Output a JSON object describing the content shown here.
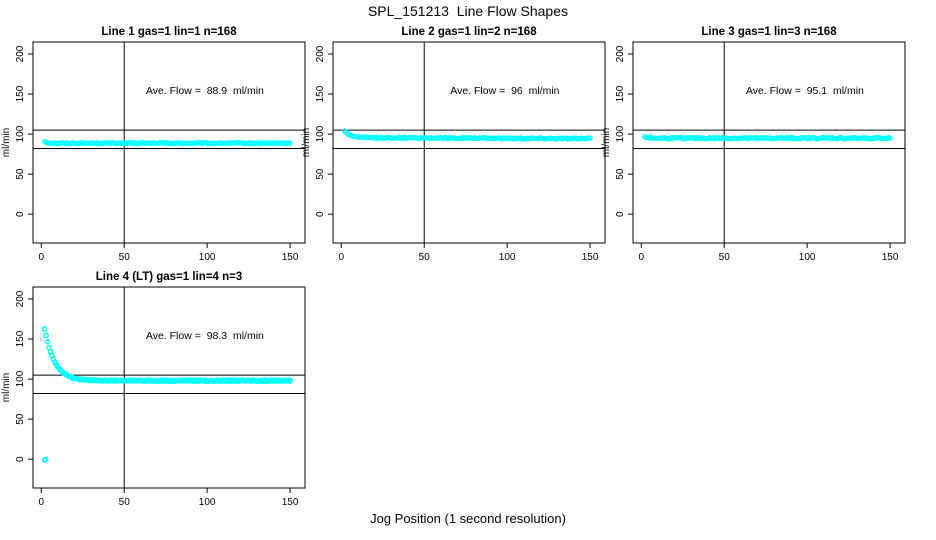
{
  "figure": {
    "title": "SPL_151213  Line Flow Shapes",
    "xlabel": "Jog Position (1 second resolution)",
    "background_color": "#ffffff",
    "marker_color": "#00FFFF",
    "line_color": "#000000"
  },
  "chart_data": {
    "type": "scatter",
    "title": "SPL_151213  Line Flow Shapes",
    "xlabel": "Jog Position (1 second resolution)",
    "layout": "2-row by 3-column grid, 4 panels used (3 top, 1 bottom-left)",
    "shared": {
      "ylabel": "ml/min",
      "xticks": [
        0,
        50,
        100,
        150
      ],
      "yticks": [
        0,
        50,
        100,
        150,
        200
      ],
      "xlim": [
        -5,
        159
      ],
      "ylim": [
        -36,
        215
      ],
      "vline_x": 50,
      "hlines": [
        105,
        82
      ],
      "grid": "off",
      "marker": "open-circle",
      "marker_color": "#00FFFF"
    },
    "panels": [
      {
        "title": "Line 1 gas=1 lin=1 n=168",
        "annotation": "Ave. Flow =  88.9  ml/min",
        "ave_flow": 88.9,
        "gas": 1,
        "lin": 1,
        "n": 168,
        "grid": {
          "row": 0,
          "col": 0
        },
        "profile": {
          "x_start": 2,
          "x_end": 150,
          "points": 168,
          "passes": 1,
          "y_start": 91,
          "y_settle": 88.7,
          "decay_tau": 1.5,
          "slope": 0,
          "jitter": 0.55,
          "outliers": []
        }
      },
      {
        "title": "Line 2 gas=1 lin=2 n=168",
        "annotation": "Ave. Flow =  96  ml/min",
        "ave_flow": 96,
        "gas": 1,
        "lin": 2,
        "n": 168,
        "grid": {
          "row": 0,
          "col": 1
        },
        "profile": {
          "x_start": 2,
          "x_end": 150,
          "points": 168,
          "passes": 1,
          "y_start": 104,
          "y_settle": 95.6,
          "decay_tau": 3.5,
          "slope": -0.008,
          "jitter": 0.75,
          "outliers": []
        }
      },
      {
        "title": "Line 3 gas=1 lin=3 n=168",
        "annotation": "Ave. Flow =  95.1  ml/min",
        "ave_flow": 95.1,
        "gas": 1,
        "lin": 3,
        "n": 168,
        "grid": {
          "row": 0,
          "col": 2
        },
        "profile": {
          "x_start": 2,
          "x_end": 150,
          "points": 168,
          "passes": 1,
          "y_start": 97,
          "y_settle": 94.9,
          "decay_tau": 2,
          "slope": 0,
          "jitter": 0.9,
          "outliers": []
        }
      },
      {
        "title": "Line 4 (LT) gas=1 lin=4 n=3",
        "annotation": "Ave. Flow =  98.3  ml/min",
        "ave_flow": 98.3,
        "gas": 1,
        "lin": 4,
        "n": 3,
        "grid": {
          "row": 1,
          "col": 0
        },
        "profile": {
          "x_start": 2,
          "x_end": 150,
          "points": 168,
          "passes": 3,
          "y_start": 163,
          "y_settle": 98.0,
          "decay_tau": 6,
          "slope": 0,
          "jitter": 0.7,
          "outliers": [
            [
              2,
              -1
            ]
          ]
        }
      }
    ]
  }
}
